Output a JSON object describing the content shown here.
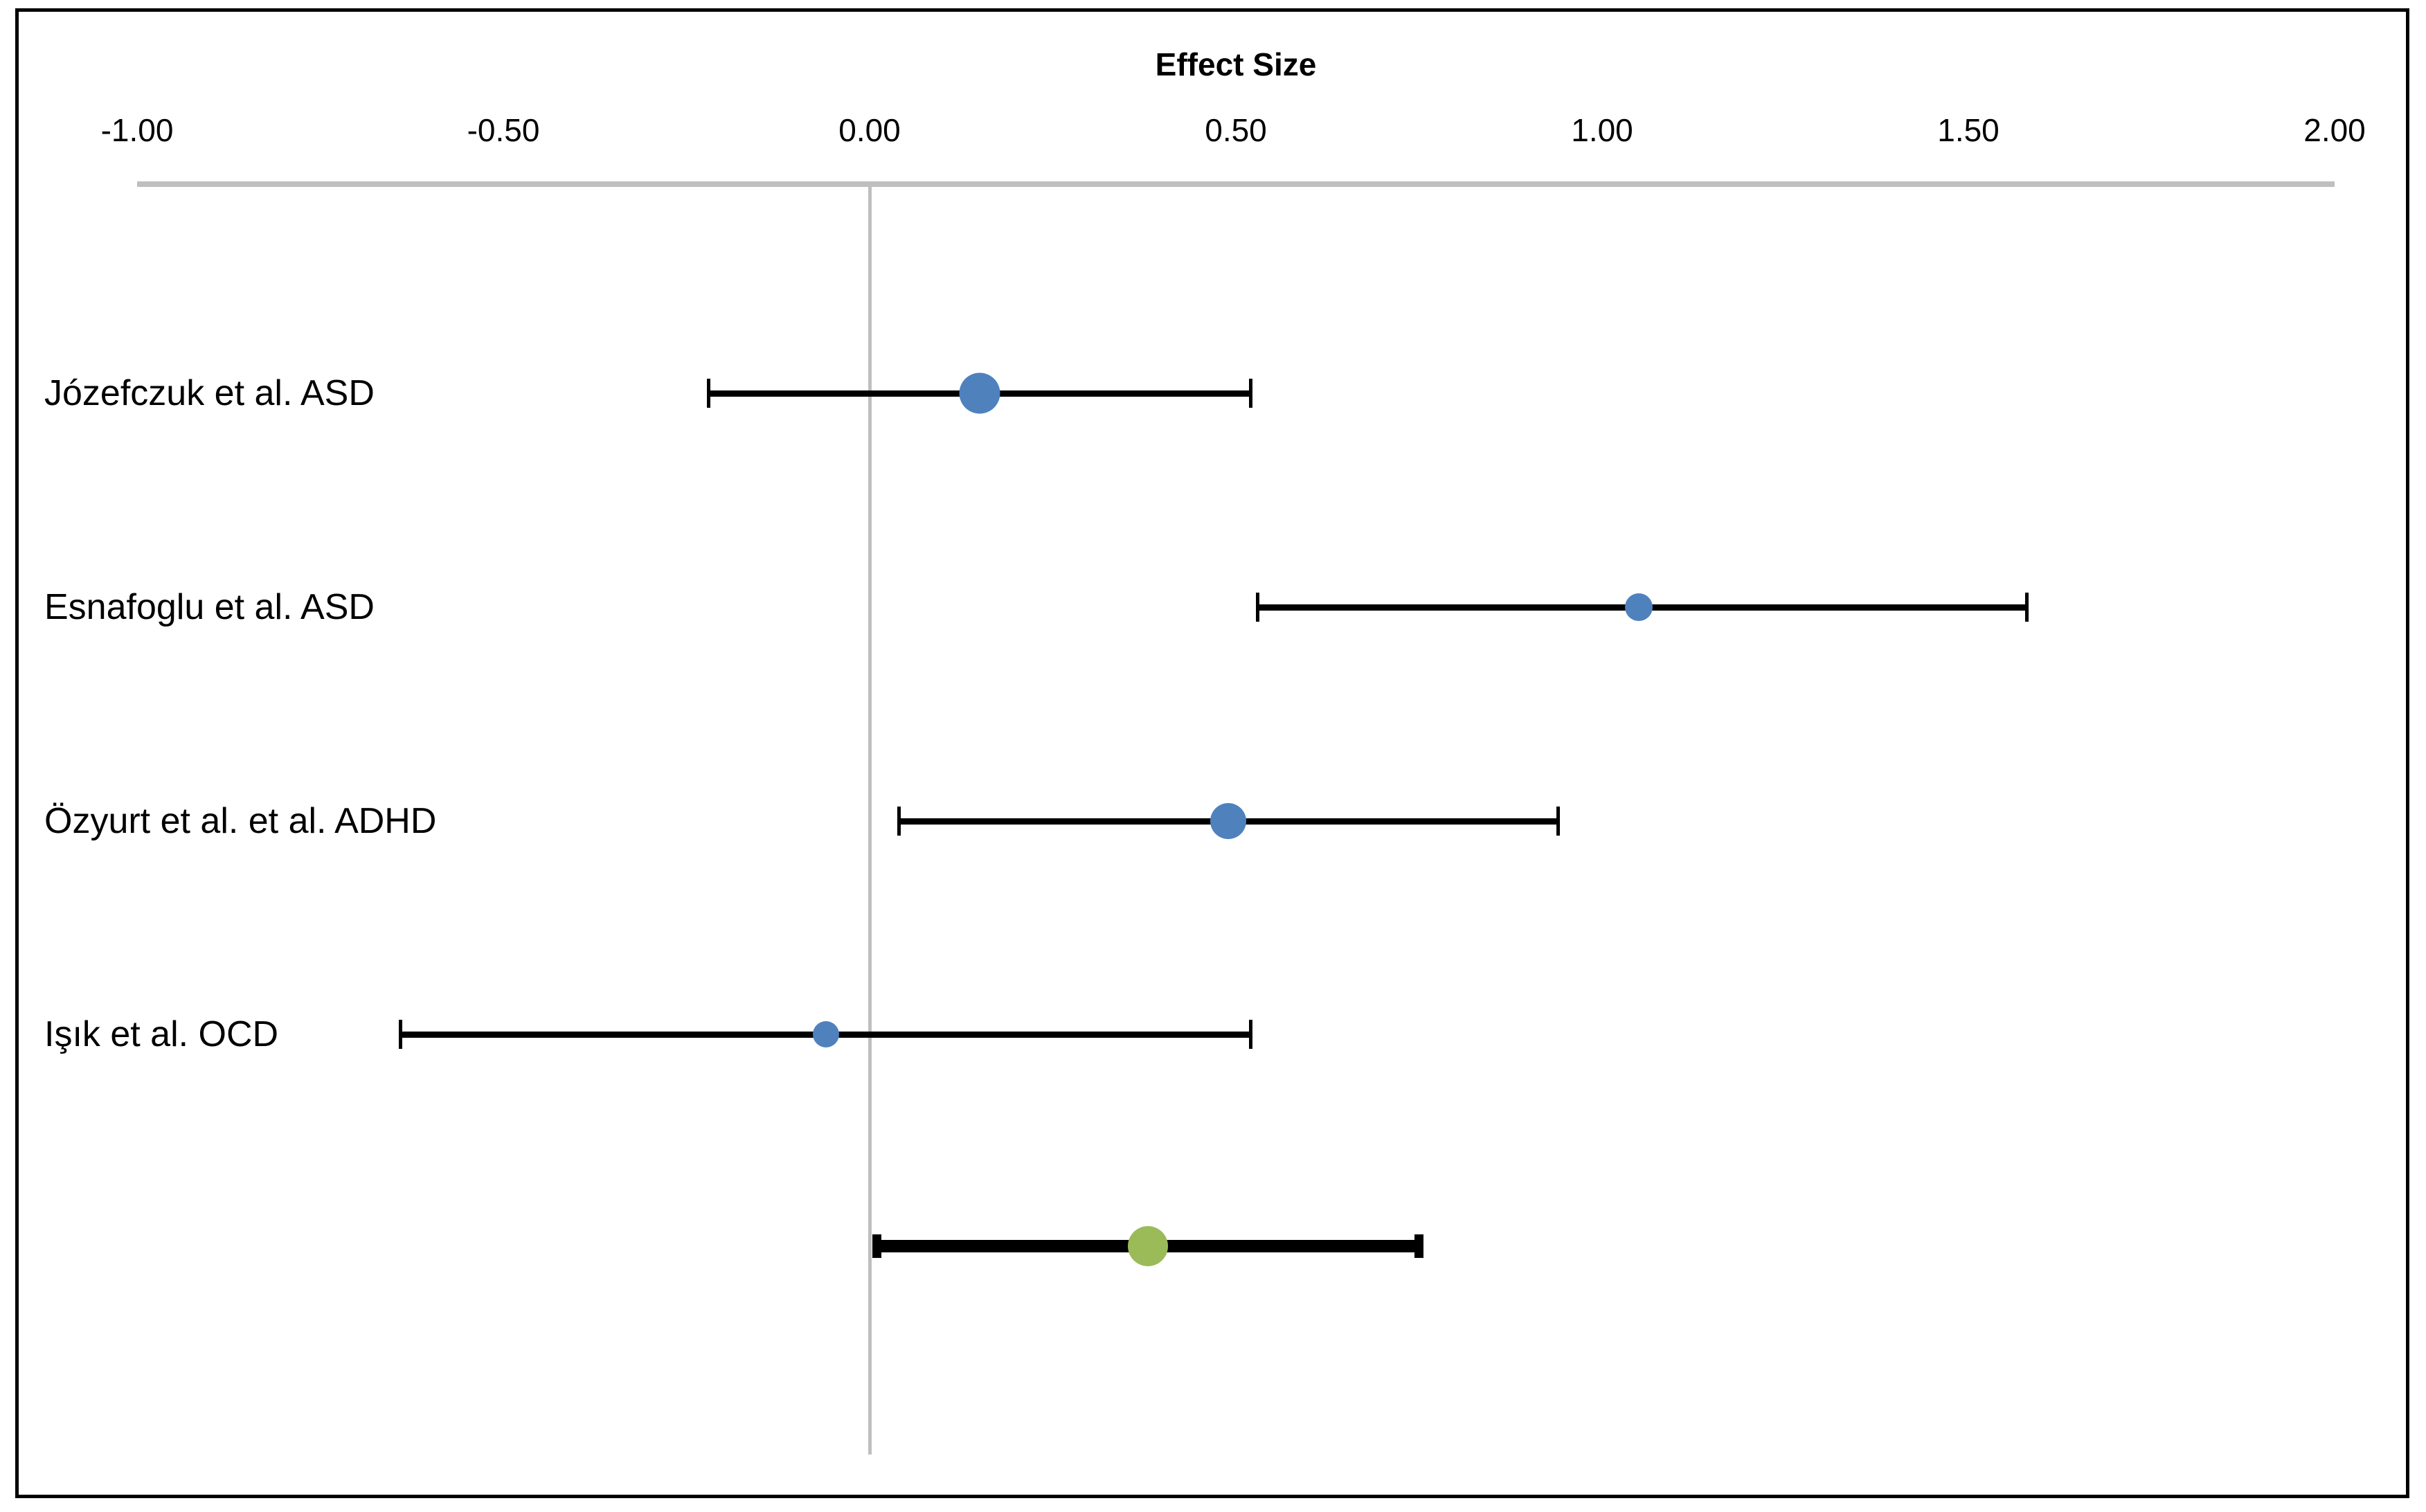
{
  "chart_data": {
    "type": "scatter",
    "subtype": "forest-plot",
    "title": "Effect Size",
    "xlabel": "Effect Size",
    "ylabel": "",
    "xlim": [
      -1.0,
      2.0
    ],
    "grid": "zero-line-only",
    "legend": "none",
    "x_ticks": [
      {
        "label": "-1.00",
        "value": -1.0
      },
      {
        "label": "-0.50",
        "value": -0.5
      },
      {
        "label": "0.00",
        "value": 0.0
      },
      {
        "label": "0.50",
        "value": 0.5
      },
      {
        "label": "1.00",
        "value": 1.0
      },
      {
        "label": "1.50",
        "value": 1.5
      },
      {
        "label": "2.00",
        "value": 2.0
      }
    ],
    "studies": [
      {
        "label": "Józefczuk et al. ASD",
        "estimate": 0.15,
        "ci_low": -0.22,
        "ci_high": 0.52,
        "marker_color": "#4F81BD",
        "marker_size_px": 59
      },
      {
        "label": "Esnafoglu et al. ASD",
        "estimate": 1.05,
        "ci_low": 0.53,
        "ci_high": 1.58,
        "marker_color": "#4F81BD",
        "marker_size_px": 40
      },
      {
        "label": "Özyurt et al. et al. ADHD",
        "estimate": 0.49,
        "ci_low": 0.04,
        "ci_high": 0.94,
        "marker_color": "#4F81BD",
        "marker_size_px": 52
      },
      {
        "label": "Işık et al. OCD",
        "estimate": -0.06,
        "ci_low": -0.64,
        "ci_high": 0.52,
        "marker_color": "#4F81BD",
        "marker_size_px": 38
      }
    ],
    "summary": {
      "label": "",
      "estimate": 0.38,
      "ci_low": 0.01,
      "ci_high": 0.75,
      "marker_color": "#9BBB59",
      "marker_size_px": 58,
      "bar_color": "#000000"
    },
    "colors": {
      "study_marker": "#4F81BD",
      "summary_marker": "#9BBB59",
      "ci_line": "#000000",
      "axis": "#BFBFBF",
      "zero_line": "#BFBFBF",
      "border": "#000000",
      "background": "#FFFFFF"
    }
  }
}
